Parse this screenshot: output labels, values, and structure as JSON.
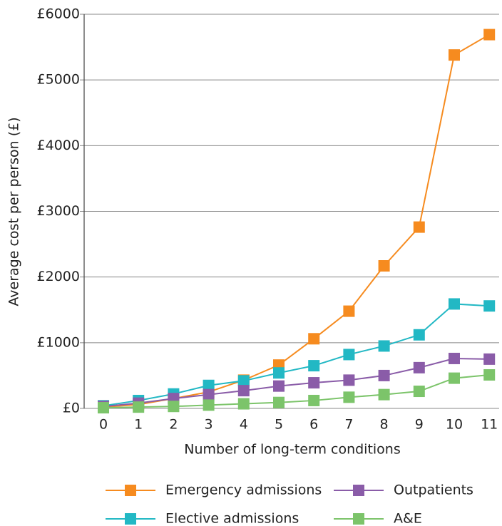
{
  "chart_data": {
    "type": "line",
    "x_label": "Number of long-term conditions",
    "y_label": "Average cost per person (£)",
    "categories": [
      "0",
      "1",
      "2",
      "3",
      "4",
      "5",
      "6",
      "7",
      "8",
      "9",
      "10",
      "11"
    ],
    "series": [
      {
        "name": "Emergency admissions",
        "color": "#f68b1f",
        "values": [
          20,
          60,
          150,
          250,
          430,
          660,
          1060,
          1480,
          2170,
          2760,
          5380,
          5690
        ]
      },
      {
        "name": "Elective admissions",
        "color": "#22b8c4",
        "values": [
          40,
          120,
          220,
          350,
          420,
          540,
          650,
          820,
          950,
          1120,
          1590,
          1560
        ]
      },
      {
        "name": "Outpatients",
        "color": "#8a5ca8",
        "values": [
          30,
          80,
          150,
          210,
          270,
          340,
          390,
          430,
          500,
          620,
          760,
          750
        ]
      },
      {
        "name": "A&E",
        "color": "#7cc46a",
        "values": [
          10,
          20,
          30,
          50,
          70,
          90,
          120,
          170,
          210,
          260,
          460,
          510
        ]
      }
    ],
    "ylim": [
      0,
      6000
    ],
    "yticks": [
      {
        "value": 0,
        "label": "£0"
      },
      {
        "value": 1000,
        "label": "£1000"
      },
      {
        "value": 2000,
        "label": "£2000"
      },
      {
        "value": 3000,
        "label": "£3000"
      },
      {
        "value": 4000,
        "label": "£4000"
      },
      {
        "value": 5000,
        "label": "£5000"
      },
      {
        "value": 6000,
        "label": "£6000"
      }
    ],
    "grid": true,
    "legend": "bottom"
  }
}
